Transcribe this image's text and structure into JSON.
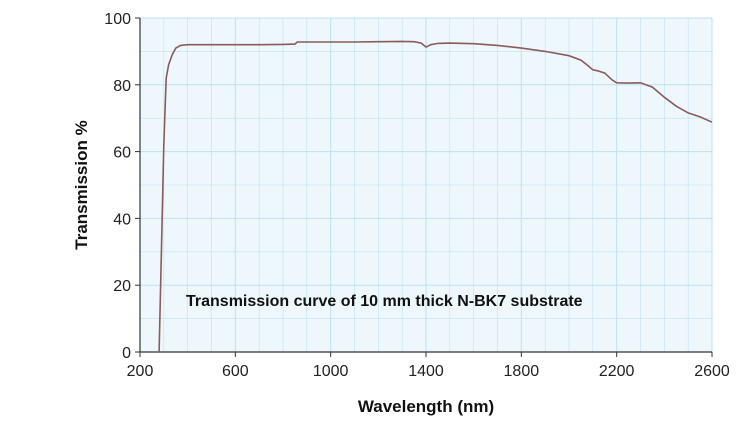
{
  "chart_data": {
    "type": "line",
    "title": "",
    "xlabel": "Wavelength (nm)",
    "ylabel": "Transmission %",
    "annotation": "Transmission curve of 10 mm thick N-BK7 substrate",
    "xlim": [
      200,
      2600
    ],
    "ylim": [
      0,
      100
    ],
    "xticks": [
      200,
      600,
      1000,
      1400,
      1800,
      2200,
      2600
    ],
    "yticks": [
      0,
      20,
      40,
      60,
      80,
      100
    ],
    "grid": true,
    "legend": "none",
    "colors": {
      "background": "#eef8fc",
      "grid": "#bfe0f0",
      "line": "#8b5a5a",
      "axis": "#333333"
    },
    "series": [
      {
        "x": [
          280,
          290,
          300,
          310,
          320,
          335,
          350,
          370,
          400,
          500,
          600,
          700,
          800,
          850,
          860,
          900,
          1000,
          1100,
          1200,
          1300,
          1350,
          1380,
          1400,
          1420,
          1450,
          1500,
          1600,
          1700,
          1800,
          1900,
          2000,
          2050,
          2080,
          2100,
          2120,
          2150,
          2180,
          2200,
          2250,
          2300,
          2350,
          2400,
          2450,
          2500,
          2550,
          2600
        ],
        "y": [
          0,
          30,
          62,
          82,
          86,
          89,
          91,
          91.8,
          92,
          92,
          92,
          92,
          92.1,
          92.2,
          92.8,
          92.8,
          92.8,
          92.8,
          92.9,
          93,
          92.9,
          92.5,
          91.3,
          92,
          92.4,
          92.5,
          92.3,
          91.8,
          91,
          90,
          88.7,
          87.4,
          85.7,
          84.5,
          84.2,
          83.5,
          81.5,
          80.6,
          80.5,
          80.6,
          79.3,
          76.3,
          73.6,
          71.6,
          70.4,
          68.8
        ]
      }
    ]
  }
}
